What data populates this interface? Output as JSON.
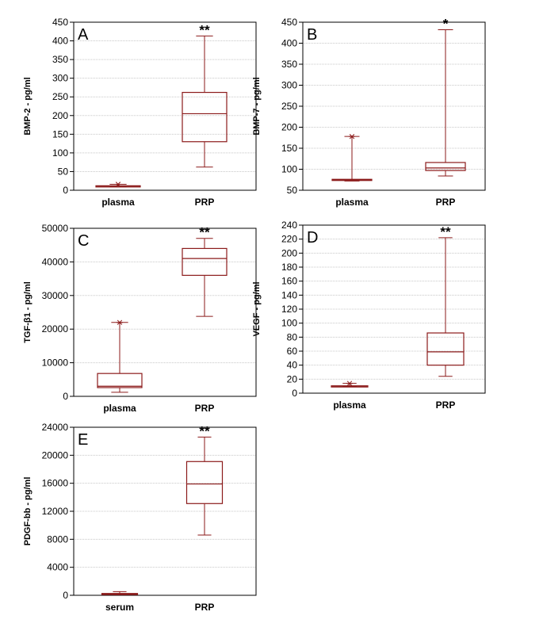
{
  "colors": {
    "box": "#8b1a1a",
    "grid": "#c8c8c8",
    "frame": "#000000"
  },
  "chart_data": [
    {
      "type": "box",
      "panel": "A",
      "ylabel": "BMP-2 - pg/ml",
      "ylim": [
        0,
        450
      ],
      "yticks": [
        "0",
        "50",
        "100",
        "150",
        "200",
        "250",
        "300",
        "350",
        "400",
        "450"
      ],
      "ytick_values": [
        0,
        50,
        100,
        150,
        200,
        250,
        300,
        350,
        400,
        450
      ],
      "categories": [
        "plasma",
        "PRP"
      ],
      "boxes": [
        {
          "min": 9,
          "q1": 10,
          "median": 11,
          "q3": 12,
          "max": 16,
          "outlier": 16
        },
        {
          "min": 62,
          "q1": 130,
          "median": 205,
          "q3": 262,
          "max": 413
        }
      ],
      "significance": "**"
    },
    {
      "type": "box",
      "panel": "B",
      "ylabel": "BMP-7 - pg/ml",
      "ylim": [
        50,
        450
      ],
      "yticks": [
        "50",
        "100",
        "150",
        "200",
        "250",
        "300",
        "350",
        "400",
        "450"
      ],
      "ytick_values": [
        50,
        100,
        150,
        200,
        250,
        300,
        350,
        400,
        450
      ],
      "categories": [
        "plasma",
        "PRP"
      ],
      "boxes": [
        {
          "min": 72,
          "q1": 74,
          "median": 75,
          "q3": 76,
          "max": 178,
          "outlier": 178
        },
        {
          "min": 84,
          "q1": 97,
          "median": 103,
          "q3": 116,
          "max": 432
        }
      ],
      "significance": "*"
    },
    {
      "type": "box",
      "panel": "C",
      "ylabel": "TGF-β1 - pg/ml",
      "ylim": [
        0,
        50000
      ],
      "yticks": [
        "0",
        "10000",
        "20000",
        "30000",
        "40000",
        "50000"
      ],
      "ytick_values": [
        0,
        10000,
        20000,
        30000,
        40000,
        50000
      ],
      "categories": [
        "plasma",
        "PRP"
      ],
      "boxes": [
        {
          "min": 1200,
          "q1": 2600,
          "median": 3000,
          "q3": 6800,
          "max": 22000,
          "outlier": 22000
        },
        {
          "min": 23800,
          "q1": 36000,
          "median": 41000,
          "q3": 44000,
          "max": 47000
        }
      ],
      "significance": "**"
    },
    {
      "type": "box",
      "panel": "D",
      "ylabel": "VEGF - pg/ml",
      "ylim": [
        0,
        240
      ],
      "yticks": [
        "0",
        "20",
        "40",
        "60",
        "80",
        "100",
        "120",
        "140",
        "160",
        "180",
        "200",
        "220",
        "240"
      ],
      "ytick_values": [
        0,
        20,
        40,
        60,
        80,
        100,
        120,
        140,
        160,
        180,
        200,
        220,
        240
      ],
      "categories": [
        "plasma",
        "PRP"
      ],
      "boxes": [
        {
          "min": 9,
          "q1": 9.5,
          "median": 10,
          "q3": 10.5,
          "max": 14,
          "outlier": 14
        },
        {
          "min": 24,
          "q1": 40,
          "median": 59,
          "q3": 86,
          "max": 222
        }
      ],
      "significance": "**"
    },
    {
      "type": "box",
      "panel": "E",
      "ylabel": "PDGF-bb - pg/ml",
      "ylim": [
        0,
        24000
      ],
      "yticks": [
        "0",
        "4000",
        "8000",
        "12000",
        "16000",
        "20000",
        "24000"
      ],
      "ytick_values": [
        0,
        4000,
        8000,
        12000,
        16000,
        20000,
        24000
      ],
      "categories": [
        "serum",
        "PRP"
      ],
      "boxes": [
        {
          "min": 80,
          "q1": 150,
          "median": 200,
          "q3": 260,
          "max": 520
        },
        {
          "min": 8600,
          "q1": 13100,
          "median": 15900,
          "q3": 19100,
          "max": 22600
        }
      ],
      "significance": "**"
    }
  ]
}
